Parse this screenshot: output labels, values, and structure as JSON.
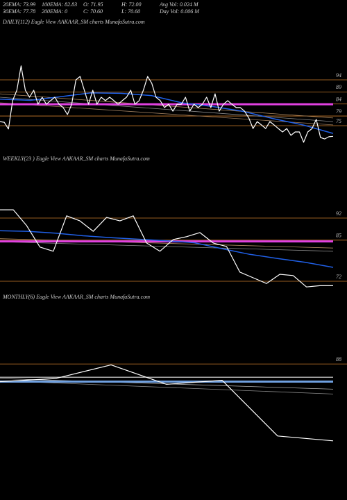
{
  "header": {
    "rows": [
      [
        "20EMA: 73.99",
        "100EMA: 82.83",
        "O: 71.95",
        "H: 72.00",
        "Avg Vol: 0.024  M"
      ],
      [
        "30EMA: 77.78",
        "200EMA: 0",
        "C: 70.60",
        "L: 70.60",
        "Day Vol: 0.006  M"
      ]
    ]
  },
  "chart_data": [
    {
      "type": "line",
      "title": "DAILY(112) Eagle  View AAKAAR_SM charts MunafaSutra.com",
      "ylim": [
        65,
        116
      ],
      "yticks": [
        94,
        89,
        84,
        79,
        75
      ],
      "grid": true,
      "grid_color": "#c87a2b",
      "series": [
        {
          "color": "#8a8a8a",
          "values": [
            86.8,
            76.7
          ]
        },
        {
          "color": "#9a7a5a",
          "values": [
            84.5,
            75.3
          ]
        },
        {
          "color": "#b08a60",
          "values": [
            88.2,
            78.2
          ]
        },
        {
          "color": "#e040e0",
          "values": [
            83.9,
            83.9
          ]
        },
        {
          "color": "#2060e8",
          "values": [
            86.0,
            85.5,
            87.0,
            88.6,
            88.4,
            87.5,
            84.5,
            83.0,
            81.0,
            78.0,
            75.3,
            71.8
          ]
        },
        {
          "color": "#ffffff",
          "values": [
            76.7,
            76.4,
            73.6,
            85.4,
            89.7,
            99.8,
            89.7,
            86.8,
            89.7,
            83.9,
            86.8,
            83.9,
            85.4,
            86.8,
            83.9,
            82.5,
            79.6,
            83.9,
            94.0,
            95.4,
            89.7,
            83.9,
            89.7,
            83.9,
            86.8,
            85.4,
            86.8,
            85.4,
            83.9,
            85.4,
            86.8,
            89.7,
            83.9,
            85.4,
            89.7,
            95.4,
            92.6,
            86.8,
            85.4,
            82.5,
            83.9,
            81.0,
            83.9,
            83.9,
            86.8,
            81.0,
            83.9,
            82.5,
            83.9,
            86.8,
            82.5,
            88.2,
            81.0,
            83.9,
            85.4,
            83.9,
            82.5,
            82.5,
            81.0,
            78.2,
            73.8,
            76.7,
            75.3,
            73.8,
            76.7,
            75.3,
            73.8,
            72.4,
            73.8,
            71.0,
            72.4,
            72.4,
            68.1,
            72.4,
            73.8,
            77.6,
            70.1,
            69.5,
            70.4,
            70.6
          ]
        }
      ]
    },
    {
      "type": "line",
      "title": "WEEKLY(23    ) Eagle  View AAKAAR_SM charts MunafaSutra.com",
      "ylim": [
        68,
        109
      ],
      "yticks": [
        92,
        85,
        72
      ],
      "grid": true,
      "grid_color": "#c87a2b",
      "series": [
        {
          "color": "#8a8a8a",
          "values": [
            84.5,
            81.5
          ]
        },
        {
          "color": "#b08a60",
          "values": [
            85.5,
            82.5
          ]
        },
        {
          "color": "#e040e0",
          "values": [
            84.6,
            84.6
          ]
        },
        {
          "color": "#2060e8",
          "values": [
            88.0,
            87.8,
            87.2,
            86.4,
            85.8,
            85.3,
            84.8,
            84.2,
            82.3,
            80.5,
            79.2,
            78.0,
            76.4
          ]
        },
        {
          "color": "#ffffff",
          "values": [
            94.6,
            94.6,
            89.6,
            82.8,
            81.5,
            92.7,
            91.1,
            87.8,
            92.2,
            91.1,
            92.7,
            84.1,
            81.5,
            85.2,
            86.1,
            87.4,
            84.1,
            83.0,
            74.9,
            73.1,
            71.3,
            74.2,
            73.8,
            70.2,
            70.6,
            70.6
          ]
        }
      ]
    },
    {
      "type": "line",
      "title": "MONTHLY(6) Eagle  View AAKAAR_SM charts MunafaSutra.com",
      "ylim": [
        58,
        102
      ],
      "yticks": [
        88
      ],
      "grid": true,
      "grid_color": "#c87a2b",
      "series": [
        {
          "color": "#8a8a8a",
          "values": [
            84.2,
            81.2
          ]
        },
        {
          "color": "#b0b0b0",
          "values": [
            84.7,
            82.3
          ]
        },
        {
          "color": "#e8e8e8",
          "values": [
            85.0,
            85.0
          ]
        },
        {
          "color": "#6fa0e0",
          "values": [
            84.0,
            84.0
          ]
        },
        {
          "color": "#ffffff",
          "values": [
            84.0,
            84.7,
            87.8,
            83.4,
            84.3,
            71.7,
            70.6
          ]
        }
      ]
    }
  ]
}
